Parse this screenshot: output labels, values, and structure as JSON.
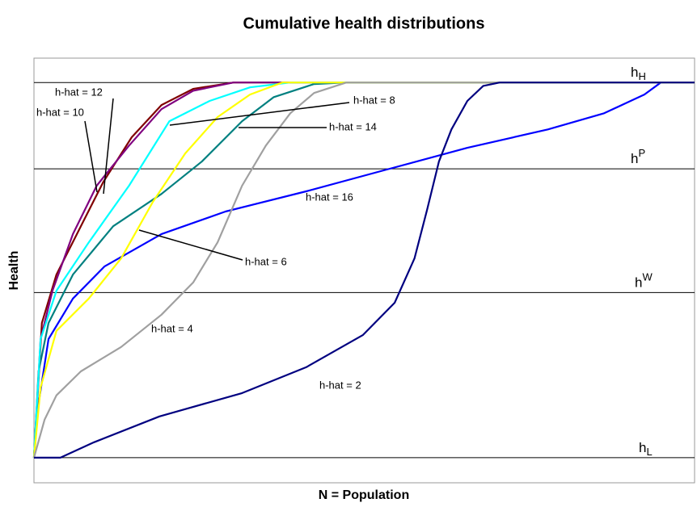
{
  "chart_data": {
    "type": "line",
    "title": "Cumulative health distributions",
    "x_label": "N = Population",
    "y_label": "Health",
    "xlim": [
      0,
      100
    ],
    "ylim": [
      -6.7,
      106.5
    ],
    "reference_lines": [
      {
        "value": 100,
        "label": "h",
        "sub": "H"
      },
      {
        "value": 77,
        "label": "h",
        "sup": "P"
      },
      {
        "value": 44,
        "label": "h",
        "sup": "W"
      },
      {
        "value": 0,
        "label": "h",
        "sub": "L"
      }
    ],
    "series": [
      {
        "name": "h-hat = 2",
        "color": "#000080",
        "x": [
          0,
          4.0,
          9.1,
          19.0,
          31.5,
          41.2,
          49.8,
          54.6,
          57.6,
          59.5,
          61.3,
          63.2,
          65.6,
          68.0,
          70.5,
          100
        ],
        "values": [
          0,
          0,
          4.1,
          11.0,
          17.2,
          24.1,
          32.7,
          41.3,
          53.1,
          66.0,
          78.9,
          87.5,
          95.1,
          99.1,
          100,
          100
        ]
      },
      {
        "name": "h-hat = 4",
        "color": "#a0a0a0",
        "x": [
          0,
          1.6,
          3.4,
          7.1,
          13.2,
          19.3,
          24.1,
          27.8,
          31.5,
          35.1,
          38.8,
          42.4,
          47.3,
          100
        ],
        "values": [
          0,
          10.1,
          16.6,
          23.0,
          29.5,
          38.1,
          46.7,
          57.4,
          72.5,
          83.2,
          91.8,
          97.2,
          100,
          100
        ]
      },
      {
        "name": "h-hat = 6",
        "color": "#ffff00",
        "x": [
          0,
          1.0,
          3.4,
          8.3,
          13.2,
          18.0,
          22.9,
          27.8,
          32.7,
          37.6,
          100
        ],
        "values": [
          0,
          18.7,
          33.8,
          42.4,
          53.1,
          68.2,
          81.1,
          90.8,
          96.8,
          100,
          100
        ]
      },
      {
        "name": "h-hat = 8",
        "color": "#00ffff",
        "x": [
          0,
          1.0,
          3.4,
          8.3,
          14.4,
          20.5,
          26.6,
          32.7,
          38.8,
          100
        ],
        "values": [
          0,
          31.6,
          44.5,
          57.4,
          72.5,
          89.7,
          95.1,
          98.7,
          100,
          100
        ]
      },
      {
        "name": "h-hat = 10",
        "color": "#800080",
        "x": [
          0,
          1.0,
          2.8,
          5.9,
          9.5,
          14.4,
          19.3,
          24.1,
          30.2,
          100
        ],
        "values": [
          0,
          31.6,
          44.5,
          59.6,
          72.5,
          83.2,
          92.9,
          97.8,
          100,
          100
        ]
      },
      {
        "name": "h-hat = 12",
        "color": "#800000",
        "x": [
          0,
          1.2,
          3.4,
          7.1,
          10.5,
          14.8,
          19.3,
          24.1,
          30.2,
          100
        ],
        "values": [
          0,
          35.9,
          48.8,
          61.7,
          73.5,
          85.4,
          94.0,
          98.3,
          100,
          100
        ]
      },
      {
        "name": "h-hat = 14",
        "color": "#008080",
        "x": [
          0,
          0.7,
          2.2,
          5.9,
          12.0,
          19.3,
          25.4,
          31.5,
          36.3,
          42.4,
          47.3,
          100
        ],
        "values": [
          0,
          23.0,
          35.9,
          48.8,
          61.7,
          70.3,
          78.9,
          89.7,
          96.1,
          99.6,
          100,
          100
        ]
      },
      {
        "name": "h-hat = 16",
        "color": "#0000ff",
        "x": [
          0,
          0.7,
          2.2,
          5.9,
          10.7,
          19.3,
          29.0,
          41.2,
          53.4,
          65.6,
          77.8,
          86.3,
          92.4,
          94.9,
          100
        ],
        "values": [
          0,
          14.4,
          31.6,
          42.4,
          51.0,
          59.6,
          65.6,
          71.0,
          76.8,
          82.6,
          87.5,
          91.8,
          96.8,
          100,
          100
        ]
      }
    ]
  }
}
